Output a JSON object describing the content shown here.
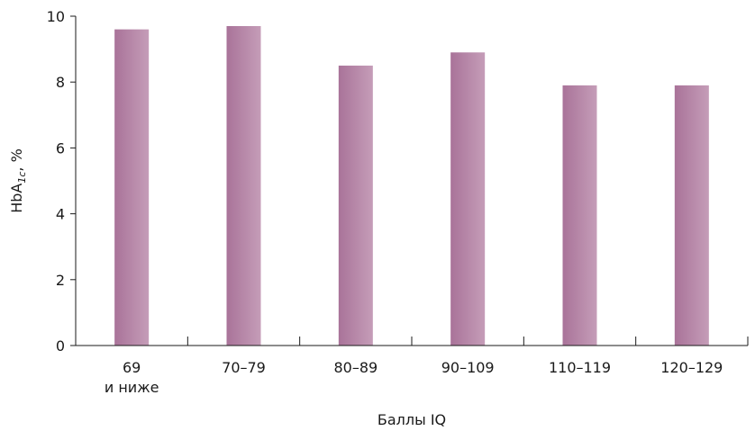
{
  "chart_data": {
    "type": "bar",
    "categories": [
      [
        "69",
        "и ниже"
      ],
      [
        "70–79"
      ],
      [
        "80–89"
      ],
      [
        "90–109"
      ],
      [
        "110–119"
      ],
      [
        "120–129"
      ]
    ],
    "values": [
      9.6,
      9.7,
      8.5,
      8.9,
      7.9,
      7.9
    ],
    "xlabel": "Баллы IQ",
    "ylabel": {
      "main": "HbA",
      "subscript": "1c",
      "suffix": ", %"
    },
    "ylim": [
      0,
      10
    ],
    "yticks": [
      0,
      2,
      4,
      6,
      8,
      10
    ],
    "grid": false,
    "legend": "none",
    "colors": {
      "bar_left": "#a97399",
      "bar_right": "#c59db8",
      "axis": "#1a1a1a"
    }
  }
}
